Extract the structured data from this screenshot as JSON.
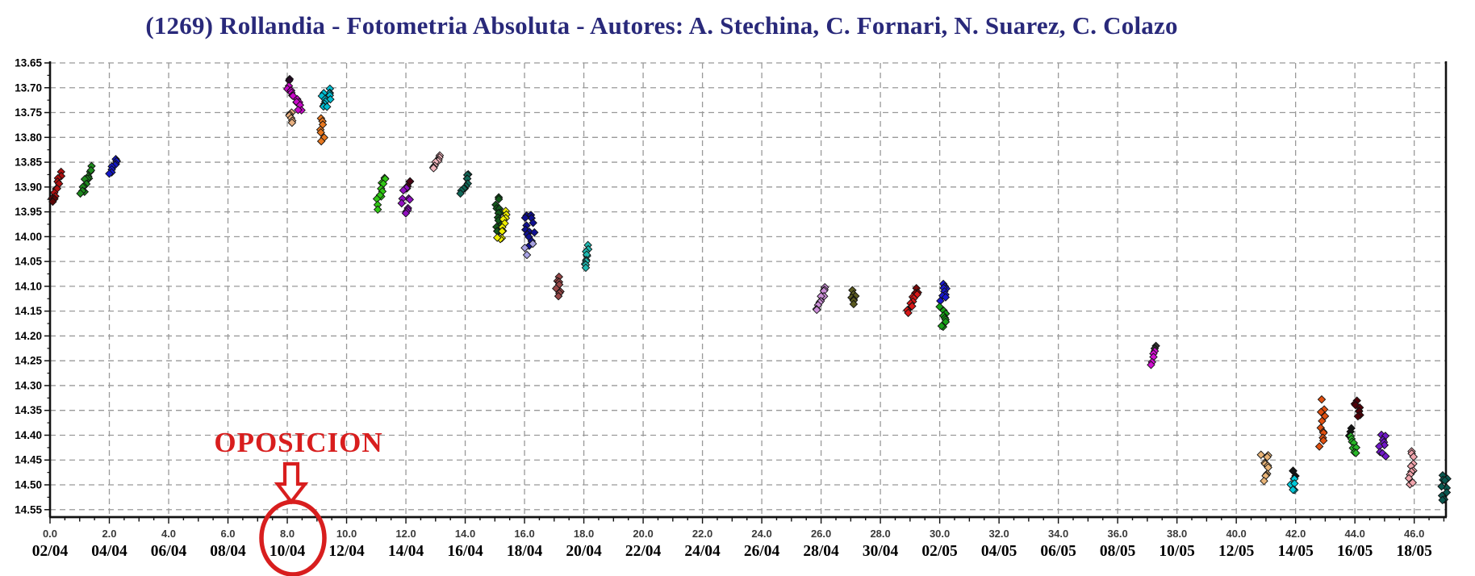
{
  "title": "(1269) Rollandia - Fotometria Absoluta - Autores: A. Stechina, C. Fornari, N. Suarez, C. Colazo",
  "title_color": "#29297A",
  "annotation": {
    "label": "OPOSICION",
    "color": "#D81E1E",
    "circled_tick_label": "8.0",
    "circled_date_label": "10/04"
  },
  "chart_data": {
    "type": "scatter",
    "title": "(1269) Rollandia - Fotometria Absoluta",
    "x_axis": {
      "range": [
        0,
        47.07
      ],
      "major_tick_step": 2.0,
      "tick_labels": [
        "0.0",
        "2.0",
        "4.0",
        "6.0",
        "8.0",
        "10.0",
        "12.0",
        "14.0",
        "16.0",
        "18.0",
        "20.0",
        "22.0",
        "24.0",
        "26.0",
        "28.0",
        "30.0",
        "32.0",
        "34.0",
        "36.0",
        "38.0",
        "40.0",
        "42.0",
        "44.0",
        "46.0"
      ],
      "date_labels": [
        "02/04",
        "04/04",
        "06/04",
        "08/04",
        "10/04",
        "12/04",
        "14/04",
        "16/04",
        "18/04",
        "20/04",
        "22/04",
        "24/04",
        "26/04",
        "28/04",
        "30/04",
        "02/05",
        "04/05",
        "06/05",
        "08/05",
        "10/05",
        "12/05",
        "14/05",
        "16/05",
        "18/05"
      ]
    },
    "y_axis": {
      "range": [
        13.65,
        14.565
      ],
      "direction": "down",
      "major_tick_step": 0.05,
      "tick_labels": [
        "13.65",
        "13.70",
        "13.75",
        "13.80",
        "13.85",
        "13.90",
        "13.95",
        "14.00",
        "14.05",
        "14.10",
        "14.15",
        "14.20",
        "14.25",
        "14.30",
        "14.35",
        "14.40",
        "14.45",
        "14.50",
        "14.55"
      ]
    },
    "grid": {
      "color": "#999999",
      "style": "dashed"
    },
    "clusters": [
      {
        "x": 0.22,
        "mag": [
          13.87,
          13.935
        ],
        "n": 12,
        "spread": 0.28,
        "tilt": -1,
        "color": "#AE1010",
        "accent": {
          "color": "#5C0606",
          "count": 3,
          "pos": "bottom"
        }
      },
      {
        "x": 1.25,
        "mag": [
          13.862,
          13.915
        ],
        "n": 13,
        "spread": 0.38,
        "tilt": -1,
        "color": "#1E8B1E"
      },
      {
        "x": 2.15,
        "mag": [
          13.843,
          13.872
        ],
        "n": 9,
        "spread": 0.22,
        "tilt": -1,
        "color": "#1418C8"
      },
      {
        "x": 8.22,
        "mag": [
          13.685,
          13.745
        ],
        "n": 16,
        "spread": 0.46,
        "tilt": 1,
        "color": "#C808C8",
        "accent": {
          "color": "#2A0A2A",
          "count": 2,
          "pos": "top"
        }
      },
      {
        "x": 8.12,
        "mag": [
          13.748,
          13.772
        ],
        "n": 6,
        "spread": 0.16,
        "tilt": 0,
        "color": "#E8B080"
      },
      {
        "x": 9.3,
        "mag": [
          13.705,
          13.74
        ],
        "n": 13,
        "spread": 0.45,
        "tilt": 0,
        "color": "#00BCD0"
      },
      {
        "x": 9.18,
        "mag": [
          13.763,
          13.805
        ],
        "n": 7,
        "spread": 0.16,
        "tilt": 0,
        "color": "#E87820"
      },
      {
        "x": 11.15,
        "mag": [
          13.878,
          13.94
        ],
        "n": 11,
        "spread": 0.26,
        "tilt": -1,
        "color": "#30C814"
      },
      {
        "x": 12.02,
        "mag": [
          13.885,
          13.955
        ],
        "n": 14,
        "spread": 0.3,
        "tilt": 0,
        "color": "#9010C0",
        "accent": {
          "color": "#4A0414",
          "count": 3,
          "pos": "top"
        }
      },
      {
        "x": 13.05,
        "mag": [
          13.838,
          13.862
        ],
        "n": 8,
        "spread": 0.22,
        "tilt": -1,
        "color": "#F0B4BC"
      },
      {
        "x": 14.02,
        "mag": [
          13.872,
          13.915
        ],
        "n": 10,
        "spread": 0.26,
        "tilt": -1,
        "color": "#106858"
      },
      {
        "x": 15.08,
        "mag": [
          13.92,
          13.99
        ],
        "n": 13,
        "spread": 0.2,
        "tilt": 0,
        "color": "#14581C"
      },
      {
        "x": 15.28,
        "mag": [
          13.948,
          14.005
        ],
        "n": 10,
        "spread": 0.2,
        "tilt": -1,
        "color": "#EEEE00"
      },
      {
        "x": 16.18,
        "mag": [
          13.952,
          14.03
        ],
        "n": 16,
        "spread": 0.26,
        "tilt": 0,
        "color": "#101090",
        "accent": {
          "color": "#A8A2E2",
          "count": 3,
          "pos": "bottom"
        }
      },
      {
        "x": 17.12,
        "mag": [
          14.082,
          14.122
        ],
        "n": 8,
        "spread": 0.18,
        "tilt": 0,
        "color": "#984848"
      },
      {
        "x": 18.1,
        "mag": [
          14.02,
          14.065
        ],
        "n": 10,
        "spread": 0.24,
        "tilt": 0,
        "color": "#20B8B0"
      },
      {
        "x": 26.0,
        "mag": [
          14.102,
          14.148
        ],
        "n": 10,
        "spread": 0.26,
        "tilt": -1,
        "color": "#CC8FD8"
      },
      {
        "x": 27.1,
        "mag": [
          14.11,
          14.135
        ],
        "n": 7,
        "spread": 0.18,
        "tilt": 0,
        "color": "#5A5A20"
      },
      {
        "x": 29.1,
        "mag": [
          14.105,
          14.152
        ],
        "n": 13,
        "spread": 0.32,
        "tilt": -1,
        "color": "#D81818",
        "accent": {
          "color": "#7A0A0A",
          "count": 3,
          "pos": "top"
        }
      },
      {
        "x": 30.1,
        "mag": [
          14.093,
          14.128
        ],
        "n": 9,
        "spread": 0.2,
        "tilt": 0,
        "color": "#1818D0"
      },
      {
        "x": 30.12,
        "mag": [
          14.143,
          14.183
        ],
        "n": 9,
        "spread": 0.2,
        "tilt": 0,
        "color": "#18A018"
      },
      {
        "x": 37.2,
        "mag": [
          14.218,
          14.258
        ],
        "n": 7,
        "spread": 0.16,
        "tilt": -1,
        "color": "#D010D0",
        "accent": {
          "color": "#303030",
          "count": 2,
          "pos": "top"
        }
      },
      {
        "x": 41.0,
        "mag": [
          14.438,
          14.49
        ],
        "n": 11,
        "spread": 0.24,
        "tilt": 0,
        "color": "#E8B478"
      },
      {
        "x": 41.92,
        "mag": [
          14.468,
          14.512
        ],
        "n": 9,
        "spread": 0.2,
        "tilt": 0,
        "color": "#00C8D8",
        "accent": {
          "color": "#151515",
          "count": 3,
          "pos": "top"
        }
      },
      {
        "x": 42.9,
        "mag": [
          14.348,
          14.42
        ],
        "n": 10,
        "spread": 0.18,
        "tilt": 0,
        "color": "#E05010"
      },
      {
        "x": 43.93,
        "mag": [
          14.39,
          14.437
        ],
        "n": 11,
        "spread": 0.26,
        "tilt": 0,
        "color": "#28B828",
        "accent": {
          "color": "#151515",
          "count": 3,
          "pos": "top"
        }
      },
      {
        "x": 44.1,
        "mag": [
          14.33,
          14.363
        ],
        "n": 8,
        "spread": 0.2,
        "tilt": 0,
        "color": "#500008"
      },
      {
        "x": 44.93,
        "mag": [
          14.398,
          14.443
        ],
        "n": 9,
        "spread": 0.18,
        "tilt": 0,
        "color": "#7018C8"
      },
      {
        "x": 45.92,
        "mag": [
          14.435,
          14.5
        ],
        "n": 11,
        "spread": 0.2,
        "tilt": 0,
        "color": "#F0A4AC"
      },
      {
        "x": 47.0,
        "mag": [
          14.478,
          14.532
        ],
        "n": 10,
        "spread": 0.18,
        "tilt": 0,
        "color": "#0A5850"
      }
    ],
    "outlier_points": [
      {
        "x": 15.08,
        "mag": 14.002,
        "color": "#EEEE00"
      },
      {
        "x": 42.88,
        "mag": 14.328,
        "color": "#E05010"
      }
    ],
    "legend": "none"
  }
}
